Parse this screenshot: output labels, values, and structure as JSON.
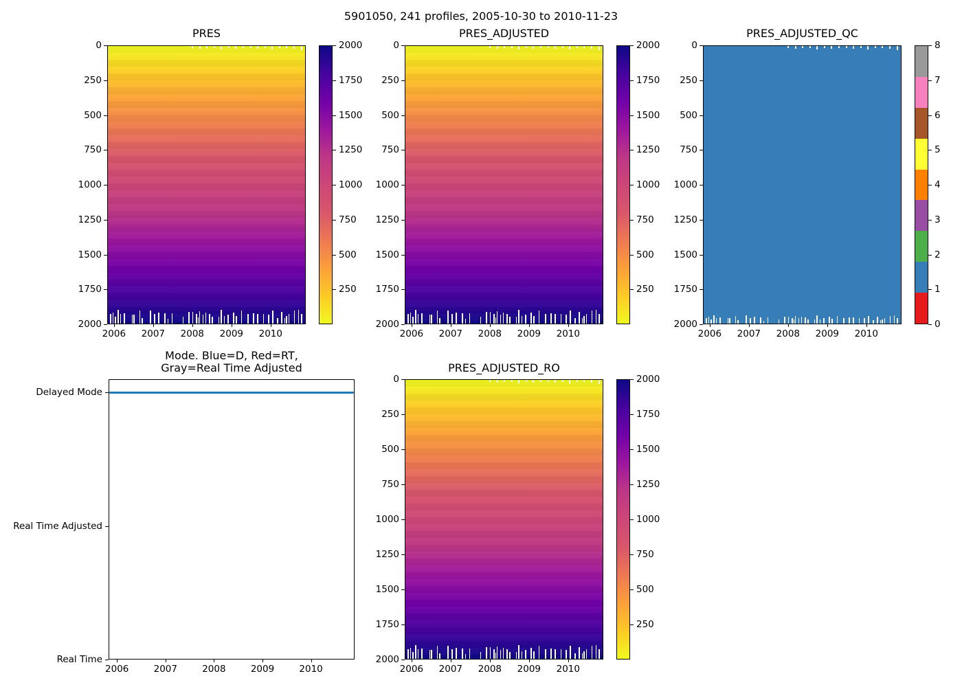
{
  "figure_title": "5901050, 241 profiles, 2005-10-30 to 2010-11-23",
  "float_id": "5901050",
  "n_profiles": 241,
  "date_range": [
    "2005-10-30",
    "2010-11-23"
  ],
  "colors": {
    "background": "#ffffff",
    "axis": "#000000",
    "mode_line_blue": "#1f77b4",
    "qc_fill_blue": "#377eb8",
    "plasma_stops_top_to_bottom": [
      "#f0f921",
      "#fdca26",
      "#fb9f3a",
      "#ed7953",
      "#d8576b",
      "#cc4778",
      "#bd3786",
      "#9c179e",
      "#7201a8",
      "#46039f",
      "#0d0887"
    ],
    "qc_set1_colors_values_0_to_8": [
      "#e41a1c",
      "#377eb8",
      "#4daf4a",
      "#984ea3",
      "#ff7f00",
      "#ffff33",
      "#a65628",
      "#f781bf",
      "#999999"
    ]
  },
  "chart_data": [
    {
      "type": "heatmap",
      "title": "PRES",
      "x_tick_labels": [
        "2006",
        "2007",
        "2008",
        "2009",
        "2010"
      ],
      "y_tick_labels": [
        "0",
        "250",
        "500",
        "750",
        "1000",
        "1250",
        "1500",
        "1750",
        "2000"
      ],
      "y_axis_range": [
        0,
        2000
      ],
      "colormap": "plasma reversed: 0 dbar = yellow at surface, 2000 dbar = dark navy at depth",
      "values_description": "pressure increases linearly with depth (value = depth level, 0 to 2000 dbar) for all 241 profile columns; white gaps at bottom where profiles end shallower than 2000 dbar",
      "colorbar_tick_labels_top_to_bottom": [
        "2000",
        "1750",
        "1500",
        "1250",
        "1000",
        "750",
        "500",
        "250"
      ],
      "colorbar_range": [
        0,
        2000
      ]
    },
    {
      "type": "heatmap",
      "title": "PRES_ADJUSTED",
      "x_tick_labels": [
        "2006",
        "2007",
        "2008",
        "2009",
        "2010"
      ],
      "y_tick_labels": [
        "0",
        "250",
        "500",
        "750",
        "1000",
        "1250",
        "1500",
        "1750",
        "2000"
      ],
      "y_axis_range": [
        0,
        2000
      ],
      "colormap": "plasma reversed: 0 dbar = yellow at surface, 2000 dbar = dark navy at depth",
      "values_description": "identical gradient to PRES: adjusted pressure 0-2000 dbar increasing with depth",
      "colorbar_tick_labels_top_to_bottom": [
        "2000",
        "1750",
        "1500",
        "1250",
        "1000",
        "750",
        "500",
        "250"
      ],
      "colorbar_range": [
        0,
        2000
      ]
    },
    {
      "type": "heatmap",
      "title": "PRES_ADJUSTED_QC",
      "x_tick_labels": [
        "2006",
        "2007",
        "2008",
        "2009",
        "2010"
      ],
      "y_tick_labels": [
        "0",
        "250",
        "500",
        "750",
        "1000",
        "1250",
        "1500",
        "1750",
        "2000"
      ],
      "y_axis_range": [
        0,
        2000
      ],
      "uniform_value": 1,
      "fill_color": "#377eb8",
      "values_description": "all quality-control flags equal 1 (good data, blue) across every profile and depth",
      "colorbar_tick_labels_top_to_bottom": [
        "8",
        "7",
        "6",
        "5",
        "4",
        "3",
        "2",
        "1",
        "0"
      ],
      "colorbar_segment_colors_top_to_bottom": [
        "#999999",
        "#f781bf",
        "#a65628",
        "#ffff33",
        "#ff7f00",
        "#984ea3",
        "#4daf4a",
        "#377eb8",
        "#e41a1c"
      ],
      "colorbar_range": [
        0,
        8
      ]
    },
    {
      "type": "line",
      "title_lines": [
        "Mode. Blue=D, Red=RT,",
        "Gray=Real Time Adjusted"
      ],
      "x_tick_labels": [
        "2006",
        "2007",
        "2008",
        "2009",
        "2010"
      ],
      "y_tick_labels_top_to_bottom": [
        "Delayed Mode",
        "Real Time Adjusted",
        "Real Time"
      ],
      "series": [
        {
          "name": "mode",
          "color": "#1f77b4",
          "constant_value": "Delayed Mode",
          "description": "blue line constant at Delayed Mode for all 241 profiles from 2005-10-30 to 2010-11-23"
        }
      ]
    },
    {
      "type": "heatmap",
      "title": "PRES_ADJUSTED_RO",
      "x_tick_labels": [
        "2006",
        "2007",
        "2008",
        "2009",
        "2010"
      ],
      "y_tick_labels": [
        "0",
        "250",
        "500",
        "750",
        "1000",
        "1250",
        "1500",
        "1750",
        "2000"
      ],
      "y_axis_range": [
        0,
        2000
      ],
      "colormap": "plasma reversed: 0 dbar = yellow at surface, 2000 dbar = dark navy at depth",
      "values_description": "identical gradient to PRES: raw-on-deck adjusted pressure 0-2000 dbar increasing with depth",
      "colorbar_tick_labels_top_to_bottom": [
        "2000",
        "1750",
        "1500",
        "1250",
        "1000",
        "750",
        "500",
        "250"
      ],
      "colorbar_range": [
        0,
        2000
      ]
    }
  ]
}
